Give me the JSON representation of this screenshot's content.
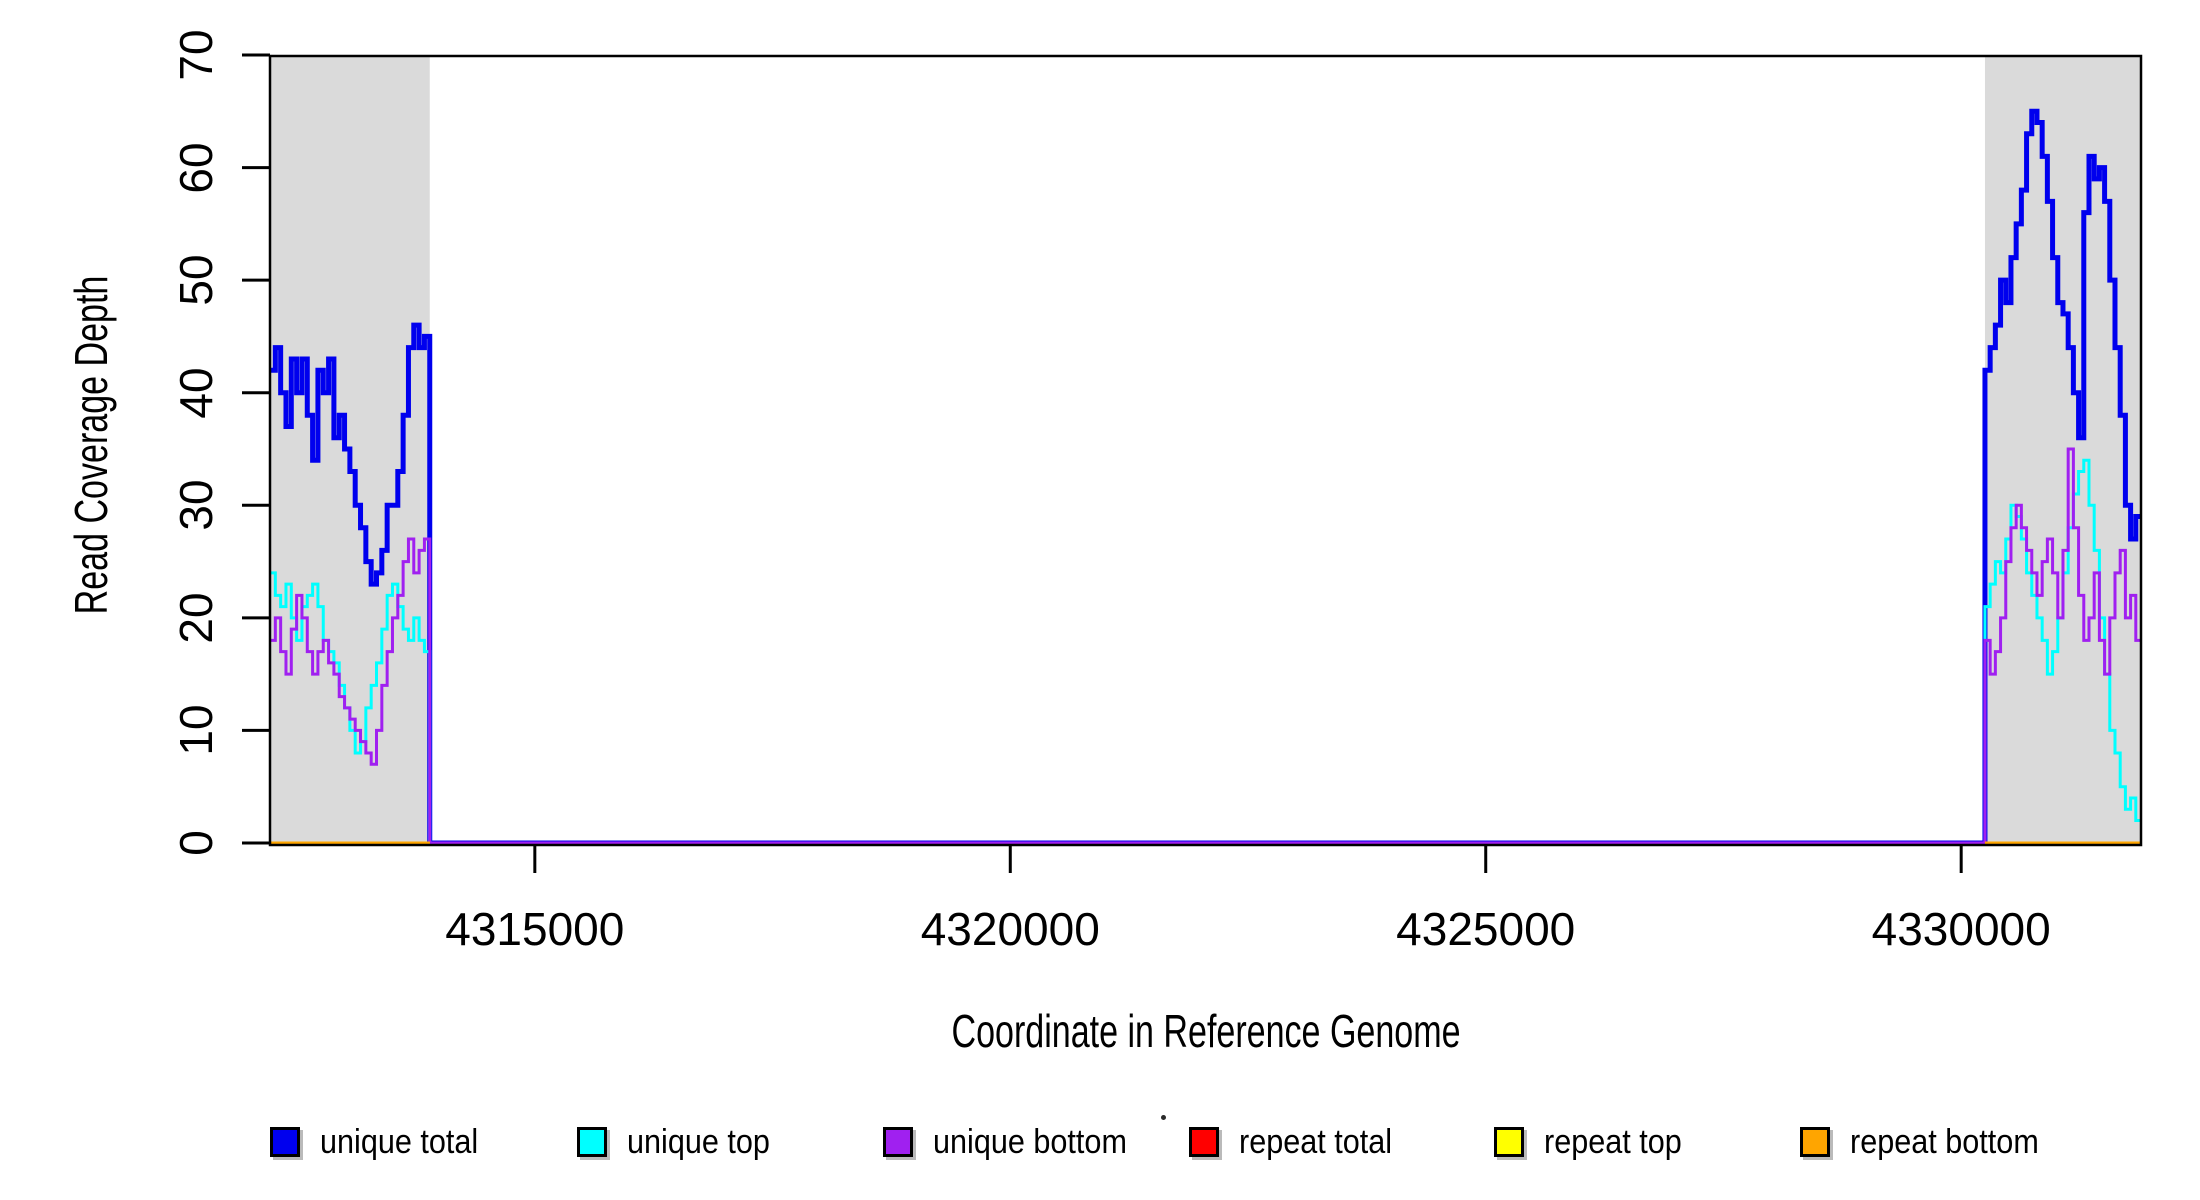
{
  "chart_data": {
    "type": "line",
    "subtype": "step",
    "title": "",
    "xlabel": "Coordinate in Reference Genome",
    "ylabel": "Read Coverage Depth",
    "x_range": [
      4312215,
      4331891
    ],
    "y_range": [
      0,
      70
    ],
    "x_ticks": [
      4315000,
      4320000,
      4325000,
      4330000
    ],
    "y_ticks": [
      0,
      10,
      20,
      30,
      40,
      50,
      60,
      70
    ],
    "grid": false,
    "legend_position": "bottom",
    "axis_color": "#000000",
    "shaded_regions": [
      {
        "x_start": 4312215,
        "x_end": 4313895,
        "color": "#DADADA"
      },
      {
        "x_start": 4330250,
        "x_end": 4331891,
        "color": "#DADADA"
      }
    ],
    "region1": {
      "x_start": 4312215,
      "x_end": 4313895
    },
    "region2": {
      "x_start": 4330250,
      "x_end": 4331891
    },
    "series": [
      {
        "name": "unique total",
        "color": "#0000EE",
        "line_width": 5,
        "between_regions_value": 0,
        "region1_values": [
          42,
          44,
          40,
          37,
          43,
          40,
          43,
          38,
          34,
          42,
          40,
          43,
          36,
          38,
          35,
          33,
          30,
          28,
          25,
          23,
          24,
          26,
          30,
          30,
          33,
          38,
          44,
          46,
          44,
          45
        ],
        "region2_values": [
          42,
          44,
          46,
          50,
          48,
          52,
          55,
          58,
          63,
          65,
          64,
          61,
          57,
          52,
          48,
          47,
          44,
          40,
          36,
          56,
          61,
          59,
          60,
          57,
          50,
          44,
          38,
          30,
          27,
          29
        ]
      },
      {
        "name": "unique top",
        "color": "#00FFFF",
        "line_width": 3,
        "between_regions_value": 0,
        "region1_values": [
          24,
          22,
          21,
          23,
          20,
          18,
          21,
          22,
          23,
          21,
          18,
          17,
          16,
          14,
          12,
          10,
          8,
          9,
          12,
          14,
          16,
          19,
          22,
          23,
          21,
          19,
          18,
          20,
          18,
          17
        ],
        "region2_values": [
          21,
          23,
          25,
          24,
          27,
          30,
          29,
          27,
          24,
          22,
          20,
          18,
          15,
          17,
          20,
          24,
          28,
          31,
          33,
          34,
          30,
          26,
          20,
          15,
          10,
          8,
          5,
          3,
          4,
          2
        ]
      },
      {
        "name": "unique bottom",
        "color": "#A020F0",
        "line_width": 3,
        "between_regions_value": 0,
        "region1_values": [
          18,
          20,
          17,
          15,
          19,
          22,
          20,
          17,
          15,
          17,
          18,
          16,
          15,
          13,
          12,
          11,
          10,
          9,
          8,
          7,
          10,
          14,
          17,
          20,
          22,
          25,
          27,
          24,
          26,
          27
        ],
        "region2_values": [
          18,
          15,
          17,
          20,
          25,
          28,
          30,
          28,
          26,
          24,
          22,
          25,
          27,
          24,
          20,
          26,
          35,
          28,
          22,
          18,
          20,
          24,
          18,
          15,
          20,
          24,
          26,
          20,
          22,
          18
        ]
      },
      {
        "name": "repeat total",
        "color": "#FF0000",
        "line_width": 3,
        "between_regions_value": null,
        "region1_values": [
          0
        ],
        "region2_values": [
          0
        ]
      },
      {
        "name": "repeat top",
        "color": "#FFFF00",
        "line_width": 3,
        "between_regions_value": null,
        "region1_values": [
          0
        ],
        "region2_values": [
          0
        ]
      },
      {
        "name": "repeat bottom",
        "color": "#FFA500",
        "line_width": 3,
        "between_regions_value": null,
        "region1_values": [
          0
        ],
        "region2_values": [
          0
        ]
      }
    ]
  }
}
